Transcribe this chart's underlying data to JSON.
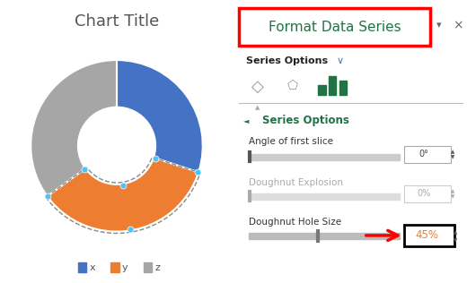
{
  "title": "Chart Title",
  "slices": [
    0.3,
    0.35,
    0.35
  ],
  "colors": [
    "#4472C4",
    "#ED7D31",
    "#A6A6A6"
  ],
  "labels": [
    "x",
    "y",
    "z"
  ],
  "legend_colors": [
    "#4472C4",
    "#ED7D31",
    "#A6A6A6"
  ],
  "donut_hole": 0.45,
  "start_angle": 90,
  "left_bg": "#FFFFFF",
  "right_bg": "#F0F0F0",
  "panel_title": "Format Data Series",
  "panel_title_color": "#217346",
  "panel_border_color": "#FF0000",
  "series_options_label": "Series Options",
  "angle_label": "Angle of first slice",
  "angle_value": "0°",
  "explosion_label": "Doughnut Explosion",
  "explosion_value": "0%",
  "hole_label": "Doughnut Hole Size",
  "hole_value": "45%",
  "arrow_color": "#FF0000",
  "selection_color": "#4FC3F7",
  "selection_border": "#888888",
  "divider_color": "#CCCCCC"
}
